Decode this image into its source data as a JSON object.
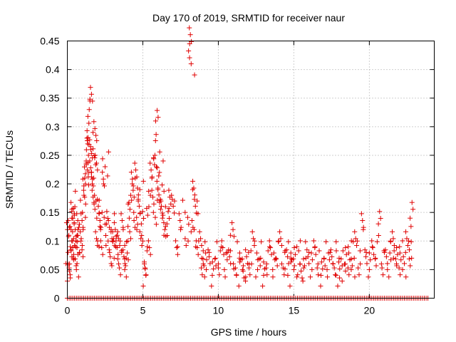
{
  "chart_data": {
    "type": "scatter",
    "title": "Day 170 of 2019, SRMTID for receiver naur",
    "xlabel": "GPS time / hours",
    "ylabel": "SRMTID / TECUs",
    "xlim": [
      0,
      24.3
    ],
    "ylim": [
      0,
      0.45
    ],
    "xticks": [
      0,
      5,
      10,
      15,
      20
    ],
    "xtick_labels": [
      "0",
      "5",
      "10",
      "15",
      "20"
    ],
    "yticks": [
      0,
      0.05,
      0.1,
      0.15,
      0.2,
      0.25,
      0.3,
      0.35,
      0.4,
      0.45
    ],
    "ytick_labels": [
      "0",
      "0.05",
      "0.1",
      "0.15",
      "0.2",
      "0.25",
      "0.3",
      "0.35",
      "0.4",
      "0.45"
    ],
    "grid": true,
    "marker": "+",
    "color": "#e00000",
    "series": [
      {
        "name": "SRMTID",
        "points": [
          [
            0.0,
            0.03
          ],
          [
            0.05,
            0.08
          ],
          [
            0.1,
            0.11
          ],
          [
            0.15,
            0.06
          ],
          [
            0.2,
            0.09
          ],
          [
            0.25,
            0.12
          ],
          [
            0.3,
            0.14
          ],
          [
            0.35,
            0.1
          ],
          [
            0.4,
            0.07
          ],
          [
            0.45,
            0.13
          ],
          [
            0.5,
            0.16
          ],
          [
            0.55,
            0.09
          ],
          [
            0.6,
            0.05
          ],
          [
            0.65,
            0.11
          ],
          [
            0.7,
            0.12
          ],
          [
            0.8,
            0.08
          ],
          [
            0.9,
            0.1
          ],
          [
            1.0,
            0.15
          ],
          [
            1.05,
            0.12
          ],
          [
            1.1,
            0.18
          ],
          [
            1.15,
            0.21
          ],
          [
            1.2,
            0.2
          ],
          [
            1.25,
            0.24
          ],
          [
            1.3,
            0.28
          ],
          [
            1.35,
            0.27
          ],
          [
            1.4,
            0.25
          ],
          [
            1.45,
            0.33
          ],
          [
            1.5,
            0.345
          ],
          [
            1.55,
            0.26
          ],
          [
            1.6,
            0.22
          ],
          [
            1.65,
            0.2
          ],
          [
            1.7,
            0.29
          ],
          [
            1.75,
            0.21
          ],
          [
            1.8,
            0.18
          ],
          [
            1.85,
            0.25
          ],
          [
            1.9,
            0.17
          ],
          [
            1.95,
            0.14
          ],
          [
            2.0,
            0.1
          ],
          [
            2.1,
            0.09
          ],
          [
            2.2,
            0.12
          ],
          [
            2.3,
            0.15
          ],
          [
            2.4,
            0.2
          ],
          [
            2.5,
            0.23
          ],
          [
            2.6,
            0.13
          ],
          [
            2.7,
            0.1
          ],
          [
            2.8,
            0.08
          ],
          [
            2.9,
            0.12
          ],
          [
            3.0,
            0.1
          ],
          [
            3.1,
            0.07
          ],
          [
            3.2,
            0.09
          ],
          [
            3.3,
            0.11
          ],
          [
            3.4,
            0.06
          ],
          [
            3.5,
            0.1
          ],
          [
            3.6,
            0.08
          ],
          [
            3.7,
            0.12
          ],
          [
            3.8,
            0.05
          ],
          [
            3.9,
            0.07
          ],
          [
            4.0,
            0.1
          ],
          [
            4.1,
            0.14
          ],
          [
            4.2,
            0.18
          ],
          [
            4.3,
            0.2
          ],
          [
            4.4,
            0.15
          ],
          [
            4.5,
            0.21
          ],
          [
            4.6,
            0.12
          ],
          [
            4.7,
            0.17
          ],
          [
            4.8,
            0.19
          ],
          [
            4.9,
            0.13
          ],
          [
            5.0,
            0.1
          ],
          [
            5.1,
            0.06
          ],
          [
            5.2,
            0.04
          ],
          [
            5.3,
            0.09
          ],
          [
            5.4,
            0.16
          ],
          [
            5.5,
            0.18
          ],
          [
            5.6,
            0.21
          ],
          [
            5.7,
            0.15
          ],
          [
            5.8,
            0.25
          ],
          [
            5.85,
            0.31
          ],
          [
            5.9,
            0.23
          ],
          [
            6.0,
            0.19
          ],
          [
            6.1,
            0.22
          ],
          [
            6.2,
            0.17
          ],
          [
            6.3,
            0.14
          ],
          [
            6.4,
            0.11
          ],
          [
            6.5,
            0.16
          ],
          [
            6.6,
            0.13
          ],
          [
            6.9,
            0.18
          ],
          [
            7.1,
            0.17
          ],
          [
            7.3,
            0.09
          ],
          [
            7.5,
            0.12
          ],
          [
            7.8,
            0.15
          ],
          [
            8.0,
            0.1
          ],
          [
            8.1,
            0.445
          ],
          [
            8.2,
            0.41
          ],
          [
            8.3,
            0.19
          ],
          [
            8.4,
            0.12
          ],
          [
            8.5,
            0.09
          ],
          [
            8.6,
            0.17
          ],
          [
            8.7,
            0.1
          ],
          [
            8.9,
            0.07
          ],
          [
            9.0,
            0.06
          ],
          [
            9.2,
            0.05
          ],
          [
            9.4,
            0.08
          ],
          [
            9.6,
            0.04
          ],
          [
            9.8,
            0.07
          ],
          [
            10.0,
            0.06
          ],
          [
            10.2,
            0.09
          ],
          [
            10.4,
            0.05
          ],
          [
            10.6,
            0.08
          ],
          [
            10.8,
            0.11
          ],
          [
            11.0,
            0.06
          ],
          [
            11.2,
            0.04
          ],
          [
            11.4,
            0.07
          ],
          [
            11.6,
            0.05
          ],
          [
            11.8,
            0.03
          ],
          [
            12.0,
            0.08
          ],
          [
            12.2,
            0.06
          ],
          [
            12.4,
            0.1
          ],
          [
            12.6,
            0.05
          ],
          [
            12.8,
            0.07
          ],
          [
            13.0,
            0.04
          ],
          [
            13.2,
            0.06
          ],
          [
            13.4,
            0.09
          ],
          [
            13.6,
            0.05
          ],
          [
            13.8,
            0.07
          ],
          [
            14.0,
            0.1
          ],
          [
            14.2,
            0.06
          ],
          [
            14.4,
            0.08
          ],
          [
            14.6,
            0.04
          ],
          [
            14.8,
            0.07
          ],
          [
            15.0,
            0.05
          ],
          [
            15.2,
            0.09
          ],
          [
            15.4,
            0.06
          ],
          [
            15.6,
            0.03
          ],
          [
            15.8,
            0.07
          ],
          [
            16.0,
            0.08
          ],
          [
            16.2,
            0.05
          ],
          [
            16.4,
            0.09
          ],
          [
            16.6,
            0.06
          ],
          [
            16.8,
            0.04
          ],
          [
            17.0,
            0.07
          ],
          [
            17.2,
            0.05
          ],
          [
            17.4,
            0.08
          ],
          [
            17.6,
            0.06
          ],
          [
            17.8,
            0.04
          ],
          [
            18.0,
            0.07
          ],
          [
            18.2,
            0.03
          ],
          [
            18.4,
            0.06
          ],
          [
            18.6,
            0.09
          ],
          [
            18.8,
            0.05
          ],
          [
            19.0,
            0.07
          ],
          [
            19.2,
            0.1
          ],
          [
            19.4,
            0.06
          ],
          [
            19.6,
            0.12
          ],
          [
            19.8,
            0.08
          ],
          [
            20.0,
            0.05
          ],
          [
            20.2,
            0.09
          ],
          [
            20.4,
            0.07
          ],
          [
            20.6,
            0.13
          ],
          [
            20.8,
            0.06
          ],
          [
            21.0,
            0.08
          ],
          [
            21.2,
            0.05
          ],
          [
            21.4,
            0.1
          ],
          [
            21.6,
            0.07
          ],
          [
            21.8,
            0.06
          ],
          [
            22.0,
            0.09
          ],
          [
            22.2,
            0.05
          ],
          [
            22.4,
            0.08
          ],
          [
            22.6,
            0.1
          ],
          [
            22.7,
            0.14
          ],
          [
            22.8,
            0.07
          ]
        ]
      }
    ],
    "zero_band": {
      "from_hours": [
        0,
        24.0
      ],
      "value": 0
    }
  }
}
